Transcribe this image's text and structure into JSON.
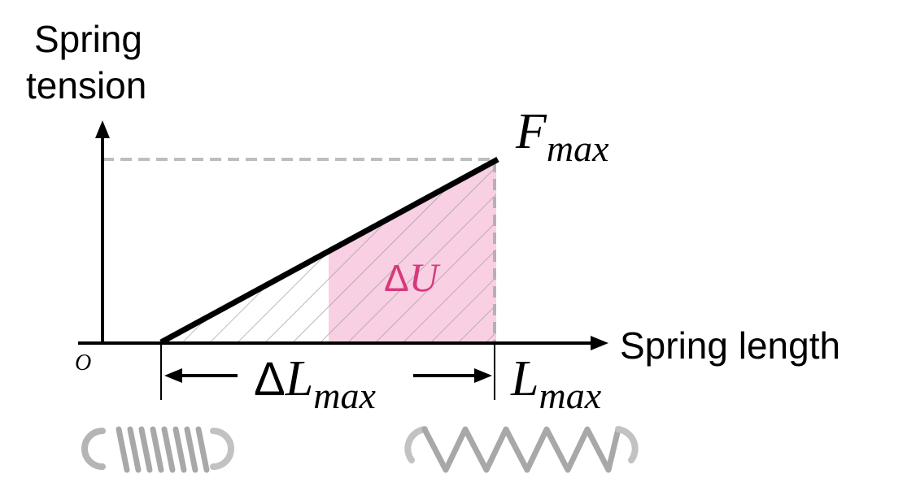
{
  "diagram": {
    "y_axis_label_line1": "Spring",
    "y_axis_label_line2": "tension",
    "x_axis_label": "Spring length",
    "origin_label": "O",
    "f_max": {
      "base": "F",
      "sub": "max"
    },
    "l_max": {
      "base": "L",
      "sub": "max"
    },
    "delta_l_max": {
      "delta": "Δ",
      "base": "L",
      "sub": "max"
    },
    "delta_u": {
      "delta": "Δ",
      "base": "U"
    },
    "colors": {
      "axis": "#000000",
      "force_line": "#000000",
      "guide": "#bdbdbd",
      "highlight_fill": "#f9cfe3",
      "highlight_text": "#d63a7c",
      "hatch": "#9e9e9e",
      "spring": "#a8a8a8"
    }
  }
}
